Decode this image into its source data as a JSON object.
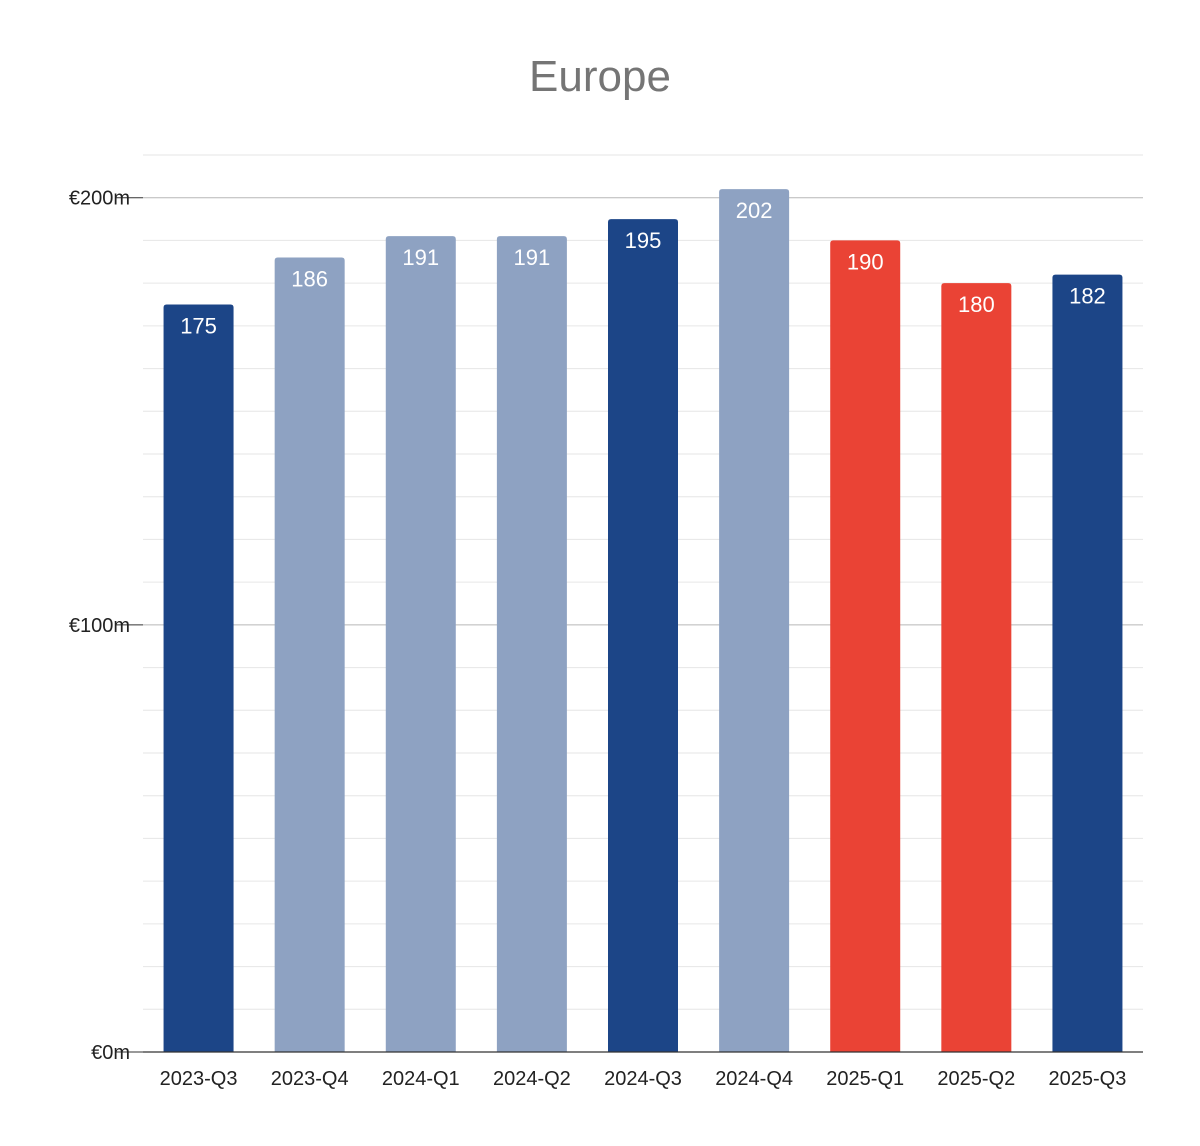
{
  "chart_data": {
    "type": "bar",
    "title": "Europe",
    "categories": [
      "2023-Q3",
      "2023-Q4",
      "2024-Q1",
      "2024-Q2",
      "2024-Q3",
      "2024-Q4",
      "2025-Q1",
      "2025-Q2",
      "2025-Q3"
    ],
    "values": [
      175,
      186,
      191,
      191,
      195,
      202,
      190,
      180,
      182
    ],
    "data_labels": [
      "175",
      "186",
      "191",
      "191",
      "195",
      "202",
      "190",
      "180",
      "182"
    ],
    "bar_colors": [
      "#1c4587",
      "#8ea2c2",
      "#8ea2c2",
      "#8ea2c2",
      "#1c4587",
      "#8ea2c2",
      "#ea4335",
      "#ea4335",
      "#1c4587"
    ],
    "ylim": [
      0,
      210
    ],
    "yticks": [
      {
        "value": 0,
        "label": "€0m"
      },
      {
        "value": 100,
        "label": "€100m"
      },
      {
        "value": 200,
        "label": "€200m"
      }
    ],
    "minor_grid_step": 10,
    "grid": true,
    "legend": "none",
    "xlabel": "",
    "ylabel": ""
  }
}
